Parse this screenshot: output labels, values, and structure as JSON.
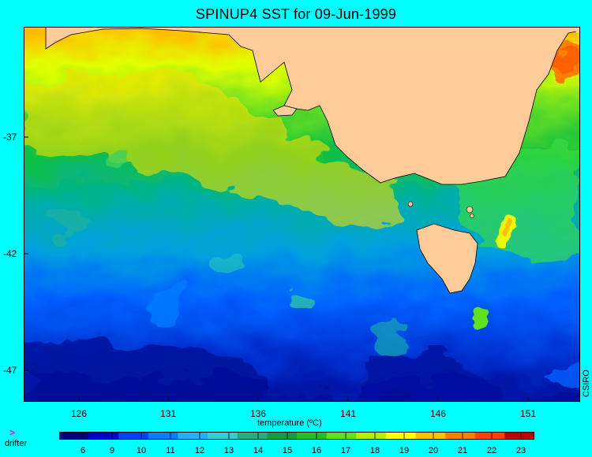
{
  "title": "SPINUP4 SST for 09-Jun-1999",
  "map": {
    "lat_ticks": [
      "-37",
      "-42",
      "-47"
    ],
    "lon_ticks": [
      "126",
      "131",
      "136",
      "141",
      "146",
      "151"
    ],
    "credit": "CSIRO",
    "land_color": "#ffcc99",
    "coast_color": "#000000"
  },
  "colorbar": {
    "title": "temperature (ºC)",
    "labels": [
      "6",
      "9",
      "10",
      "11",
      "12",
      "13",
      "14",
      "15",
      "16",
      "17",
      "18",
      "19",
      "20",
      "21",
      "22",
      "23"
    ],
    "colors": [
      "#00007f",
      "#0000d0",
      "#0040ff",
      "#0080ff",
      "#20b0ff",
      "#30d0d0",
      "#20b080",
      "#10a040",
      "#20c020",
      "#60e020",
      "#b0f000",
      "#ffff00",
      "#ffc000",
      "#ff8000",
      "#ff4000",
      "#c00000"
    ]
  },
  "legend": {
    "drifter_symbol": ">",
    "drifter_label": "drifter",
    "drifter_color": "#ff00ff"
  }
}
